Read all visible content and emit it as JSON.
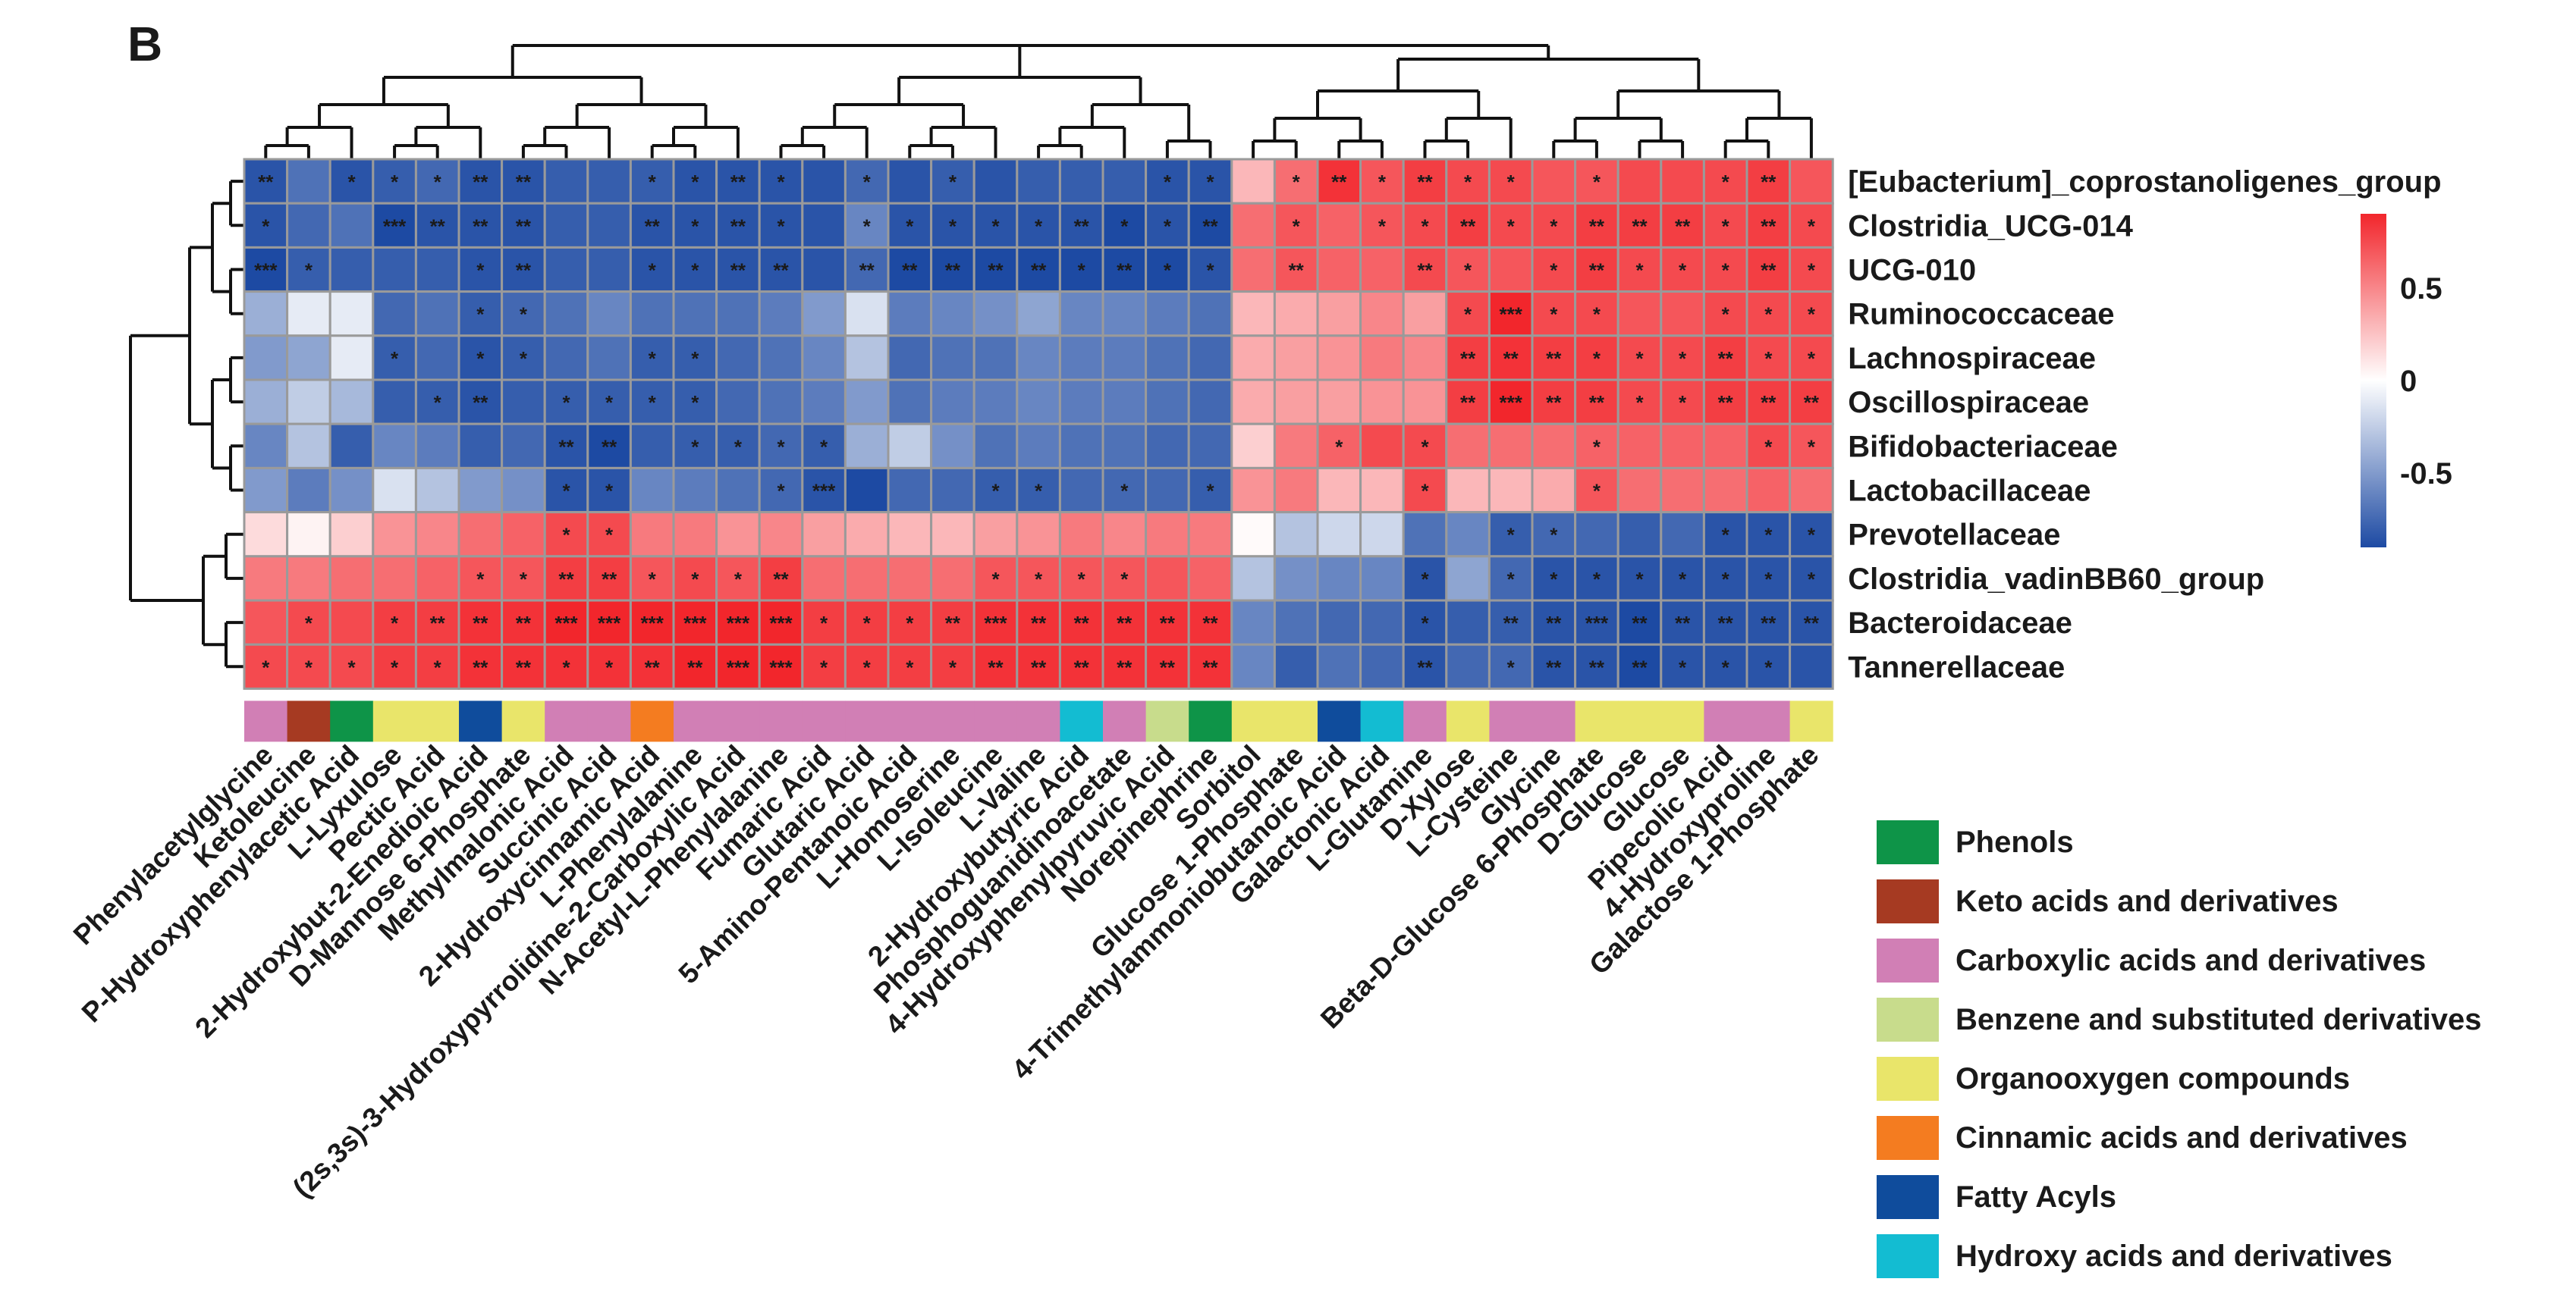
{
  "panel_label": "B",
  "chart_data": {
    "type": "heatmap",
    "rows": [
      "[Eubacterium]_coprostanoligenes_group",
      "Clostridia_UCG-014",
      "UCG-010",
      "Ruminococcaceae",
      "Lachnospiraceae",
      "Oscillospiraceae",
      "Bifidobacteriaceae",
      "Lactobacillaceae",
      "Prevotellaceae",
      "Clostridia_vadinBB60_group",
      "Bacteroidaceae",
      "Tannerellaceae"
    ],
    "columns": [
      "Phenylacetylglycine",
      "Ketoleucine",
      "P-Hydroxyphenylacetic Acid",
      "L-Lyxulose",
      "Pectic Acid",
      "2-Hydroxybut-2-Enedioic Acid",
      "D-Mannose 6-Phosphate",
      "Methylmalonic Acid",
      "Succinic Acid",
      "2-Hydroxycinnamic Acid",
      "L-Phenylalanine",
      "(2s,3s)-3-Hydroxypyrrolidine-2-Carboxylic Acid",
      "N-Acetyl-L-Phenylalanine",
      "Fumaric Acid",
      "Glutaric Acid",
      "5-Amino-Pentanoic Acid",
      "L-Homoserine",
      "L-Isoleucine",
      "L-Valine",
      "2-Hydroxybutyric Acid",
      "Phosphoguanidinoacetate",
      "4-Hydroxyphenylpyruvic Acid",
      "Norepinephrine",
      "Sorbitol",
      "Glucose 1-Phosphate",
      "4-Trimethylammoniobutanoic Acid",
      "Galactonic Acid",
      "L-Glutamine",
      "D-Xylose",
      "L-Cysteine",
      "Glycine",
      "Beta-D-Glucose 6-Phosphate",
      "D-Glucose",
      "Glucose",
      "Pipecolic Acid",
      "4-Hydroxyproline",
      "Galactose 1-Phosphate"
    ],
    "values": [
      [
        -0.85,
        -0.7,
        -0.85,
        -0.8,
        -0.75,
        -0.85,
        -0.85,
        -0.8,
        -0.8,
        -0.8,
        -0.85,
        -0.85,
        -0.85,
        -0.85,
        -0.75,
        -0.85,
        -0.8,
        -0.85,
        -0.8,
        -0.8,
        -0.8,
        -0.85,
        -0.85,
        0.3,
        0.6,
        0.85,
        0.7,
        0.8,
        0.75,
        0.75,
        0.7,
        0.7,
        0.75,
        0.75,
        0.75,
        0.8,
        0.7
      ],
      [
        -0.85,
        -0.75,
        -0.7,
        -0.9,
        -0.85,
        -0.85,
        -0.85,
        -0.8,
        -0.8,
        -0.85,
        -0.85,
        -0.85,
        -0.85,
        -0.85,
        -0.6,
        -0.85,
        -0.85,
        -0.85,
        -0.85,
        -0.85,
        -0.9,
        -0.85,
        -0.9,
        0.6,
        0.7,
        0.65,
        0.7,
        0.75,
        0.8,
        0.75,
        0.75,
        0.8,
        0.8,
        0.8,
        0.75,
        0.8,
        0.75
      ],
      [
        -0.9,
        -0.8,
        -0.8,
        -0.8,
        -0.8,
        -0.85,
        -0.85,
        -0.8,
        -0.8,
        -0.85,
        -0.85,
        -0.85,
        -0.85,
        -0.85,
        -0.75,
        -0.9,
        -0.9,
        -0.9,
        -0.9,
        -0.9,
        -0.9,
        -0.9,
        -0.85,
        0.6,
        0.7,
        0.65,
        0.65,
        0.75,
        0.7,
        0.7,
        0.75,
        0.8,
        0.75,
        0.75,
        0.75,
        0.8,
        0.75
      ],
      [
        -0.4,
        -0.1,
        -0.1,
        -0.75,
        -0.7,
        -0.8,
        -0.75,
        -0.7,
        -0.6,
        -0.7,
        -0.7,
        -0.7,
        -0.65,
        -0.5,
        -0.15,
        -0.65,
        -0.6,
        -0.55,
        -0.45,
        -0.6,
        -0.6,
        -0.65,
        -0.7,
        0.3,
        0.35,
        0.4,
        0.5,
        0.4,
        0.75,
        0.9,
        0.75,
        0.75,
        0.7,
        0.7,
        0.75,
        0.75,
        0.75
      ],
      [
        -0.5,
        -0.45,
        -0.1,
        -0.8,
        -0.75,
        -0.85,
        -0.8,
        -0.75,
        -0.7,
        -0.8,
        -0.8,
        -0.75,
        -0.7,
        -0.6,
        -0.3,
        -0.75,
        -0.7,
        -0.7,
        -0.6,
        -0.65,
        -0.65,
        -0.7,
        -0.75,
        0.35,
        0.4,
        0.45,
        0.55,
        0.5,
        0.8,
        0.85,
        0.8,
        0.8,
        0.75,
        0.75,
        0.8,
        0.75,
        0.75
      ],
      [
        -0.4,
        -0.25,
        -0.35,
        -0.8,
        -0.8,
        -0.85,
        -0.8,
        -0.8,
        -0.8,
        -0.8,
        -0.8,
        -0.75,
        -0.7,
        -0.65,
        -0.5,
        -0.7,
        -0.65,
        -0.65,
        -0.6,
        -0.65,
        -0.65,
        -0.7,
        -0.75,
        0.35,
        0.4,
        0.4,
        0.45,
        0.45,
        0.8,
        0.9,
        0.8,
        0.8,
        0.75,
        0.75,
        0.8,
        0.8,
        0.8
      ],
      [
        -0.6,
        -0.3,
        -0.8,
        -0.6,
        -0.65,
        -0.8,
        -0.75,
        -0.85,
        -0.9,
        -0.8,
        -0.8,
        -0.8,
        -0.75,
        -0.8,
        -0.4,
        -0.25,
        -0.55,
        -0.7,
        -0.65,
        -0.7,
        -0.7,
        -0.75,
        -0.75,
        0.2,
        0.55,
        0.65,
        0.75,
        0.75,
        0.6,
        0.6,
        0.6,
        0.65,
        0.65,
        0.65,
        0.65,
        0.75,
        0.7
      ],
      [
        -0.5,
        -0.65,
        -0.55,
        -0.15,
        -0.3,
        -0.5,
        -0.55,
        -0.85,
        -0.85,
        -0.6,
        -0.65,
        -0.7,
        -0.75,
        -0.85,
        -0.9,
        -0.75,
        -0.75,
        -0.8,
        -0.8,
        -0.75,
        -0.75,
        -0.75,
        -0.8,
        0.45,
        0.55,
        0.3,
        0.3,
        0.75,
        0.3,
        0.3,
        0.35,
        0.7,
        0.6,
        0.6,
        0.6,
        0.65,
        0.6
      ],
      [
        0.15,
        0.05,
        0.2,
        0.45,
        0.5,
        0.6,
        0.65,
        0.75,
        0.75,
        0.55,
        0.55,
        0.45,
        0.5,
        0.4,
        0.35,
        0.3,
        0.3,
        0.4,
        0.45,
        0.55,
        0.5,
        0.55,
        0.55,
        0.02,
        -0.3,
        -0.2,
        -0.2,
        -0.7,
        -0.6,
        -0.8,
        -0.75,
        -0.75,
        -0.8,
        -0.75,
        -0.85,
        -0.85,
        -0.85
      ],
      [
        0.55,
        0.55,
        0.6,
        0.6,
        0.65,
        0.7,
        0.7,
        0.8,
        0.8,
        0.7,
        0.75,
        0.7,
        0.8,
        0.6,
        0.6,
        0.6,
        0.6,
        0.7,
        0.7,
        0.7,
        0.7,
        0.7,
        0.65,
        -0.3,
        -0.55,
        -0.6,
        -0.6,
        -0.85,
        -0.45,
        -0.75,
        -0.85,
        -0.85,
        -0.85,
        -0.85,
        -0.85,
        -0.85,
        -0.85
      ],
      [
        0.7,
        0.75,
        0.75,
        0.8,
        0.8,
        0.85,
        0.85,
        0.9,
        0.9,
        0.9,
        0.9,
        0.9,
        0.9,
        0.8,
        0.8,
        0.8,
        0.8,
        0.85,
        0.85,
        0.85,
        0.85,
        0.85,
        0.85,
        -0.6,
        -0.7,
        -0.75,
        -0.75,
        -0.85,
        -0.8,
        -0.8,
        -0.85,
        -0.85,
        -0.9,
        -0.85,
        -0.85,
        -0.85,
        -0.85
      ],
      [
        0.75,
        0.75,
        0.75,
        0.8,
        0.8,
        0.85,
        0.85,
        0.85,
        0.85,
        0.85,
        0.9,
        0.9,
        0.9,
        0.8,
        0.8,
        0.8,
        0.8,
        0.85,
        0.85,
        0.85,
        0.85,
        0.85,
        0.85,
        -0.6,
        -0.8,
        -0.7,
        -0.75,
        -0.85,
        -0.75,
        -0.75,
        -0.85,
        -0.85,
        -0.9,
        -0.85,
        -0.85,
        -0.85,
        -0.85
      ]
    ],
    "significance": [
      [
        "**",
        "",
        "*",
        "*",
        "*",
        "**",
        "**",
        "",
        "",
        "*",
        "*",
        "**",
        "*",
        "",
        "*",
        "",
        "*",
        "",
        "",
        "",
        "",
        "*",
        "*",
        "",
        "*",
        "**",
        "*",
        "**",
        "*",
        "*",
        "",
        "*",
        "",
        "",
        "*",
        "**",
        ""
      ],
      [
        "*",
        "",
        "",
        "***",
        "**",
        "**",
        "**",
        "",
        "",
        "**",
        "*",
        "**",
        "*",
        "",
        "*",
        "*",
        "*",
        "*",
        "*",
        "**",
        "*",
        "*",
        "**",
        "",
        "*",
        "",
        "*",
        "*",
        "**",
        "*",
        "*",
        "**",
        "**",
        "**",
        "*",
        "**",
        "*"
      ],
      [
        "***",
        "*",
        "",
        "",
        "",
        "*",
        "**",
        "",
        "",
        "*",
        "*",
        "**",
        "**",
        "",
        "**",
        "**",
        "**",
        "**",
        "**",
        "*",
        "**",
        "*",
        "*",
        "",
        "**",
        "",
        "",
        "**",
        "*",
        "",
        "*",
        "**",
        "*",
        "*",
        "*",
        "**",
        "*"
      ],
      [
        "",
        "",
        "",
        "",
        "",
        "*",
        "*",
        "",
        "",
        "",
        "",
        "",
        "",
        "",
        "",
        "",
        "",
        "",
        "",
        "",
        "",
        "",
        "",
        "",
        "",
        "",
        "",
        "",
        "*",
        "***",
        "*",
        "*",
        "",
        "",
        "*",
        "*",
        "*"
      ],
      [
        "",
        "",
        "",
        "*",
        "",
        "*",
        "*",
        "",
        "",
        "*",
        "*",
        "",
        "",
        "",
        "",
        "",
        "",
        "",
        "",
        "",
        "",
        "",
        "",
        "",
        "",
        "",
        "",
        "",
        "**",
        "**",
        "**",
        "*",
        "*",
        "*",
        "**",
        "*",
        "*"
      ],
      [
        "",
        "",
        "",
        "",
        "*",
        "**",
        "",
        "*",
        "*",
        "*",
        "*",
        "",
        "",
        "",
        "",
        "",
        "",
        "",
        "",
        "",
        "",
        "",
        "",
        "",
        "",
        "",
        "",
        "",
        "**",
        "***",
        "**",
        "**",
        "*",
        "*",
        "**",
        "**",
        "**"
      ],
      [
        "",
        "",
        "",
        "",
        "",
        "",
        "",
        "**",
        "**",
        "",
        "*",
        "*",
        "*",
        "*",
        "",
        "",
        "",
        "",
        "",
        "",
        "",
        "",
        "",
        "",
        "",
        "*",
        "",
        "*",
        "",
        "",
        "",
        "*",
        "",
        "",
        "",
        "*",
        "*"
      ],
      [
        "",
        "",
        "",
        "",
        "",
        "",
        "",
        "*",
        "*",
        "",
        "",
        "",
        "*",
        "***",
        "",
        "",
        "",
        "*",
        "*",
        "",
        "*",
        "",
        "*",
        "",
        "",
        "",
        "",
        "*",
        "",
        "",
        "",
        "*",
        "",
        "",
        "",
        "",
        ""
      ],
      [
        "",
        "",
        "",
        "",
        "",
        "",
        "",
        "*",
        "*",
        "",
        "",
        "",
        "",
        "",
        "",
        "",
        "",
        "",
        "",
        "",
        "",
        "",
        "",
        "",
        "",
        "",
        "",
        "",
        "",
        "*",
        "*",
        "",
        "",
        "",
        "*",
        "*",
        "*"
      ],
      [
        "",
        "",
        "",
        "",
        "",
        "*",
        "*",
        "**",
        "**",
        "*",
        "*",
        "*",
        "**",
        "",
        "",
        "",
        "",
        "*",
        "*",
        "*",
        "*",
        "",
        "",
        "",
        "",
        "",
        "",
        "*",
        "",
        "*",
        "*",
        "*",
        "*",
        "*",
        "*",
        "*",
        "*"
      ],
      [
        "",
        "*",
        "",
        "*",
        "**",
        "**",
        "**",
        "***",
        "***",
        "***",
        "***",
        "***",
        "***",
        "*",
        "*",
        "*",
        "**",
        "***",
        "**",
        "**",
        "**",
        "**",
        "**",
        "",
        "",
        "",
        "",
        "*",
        "",
        "**",
        "**",
        "***",
        "**",
        "**",
        "**",
        "**",
        "**"
      ],
      [
        "*",
        "*",
        "*",
        "*",
        "*",
        "**",
        "**",
        "*",
        "*",
        "**",
        "**",
        "***",
        "***",
        "*",
        "*",
        "*",
        "*",
        "**",
        "**",
        "**",
        "**",
        "**",
        "**",
        "",
        "",
        "",
        "",
        "**",
        "",
        "*",
        "**",
        "**",
        "**",
        "*",
        "*",
        "*",
        ""
      ]
    ],
    "column_classes": [
      "Carboxylic acids and derivatives",
      "Keto acids and derivatives",
      "Phenols",
      "Organooxygen compounds",
      "Organooxygen compounds",
      "Fatty Acyls",
      "Organooxygen compounds",
      "Carboxylic acids and derivatives",
      "Carboxylic acids and derivatives",
      "Cinnamic acids and derivatives",
      "Carboxylic acids and derivatives",
      "Carboxylic acids and derivatives",
      "Carboxylic acids and derivatives",
      "Carboxylic acids and derivatives",
      "Carboxylic acids and derivatives",
      "Carboxylic acids and derivatives",
      "Carboxylic acids and derivatives",
      "Carboxylic acids and derivatives",
      "Carboxylic acids and derivatives",
      "Hydroxy acids and derivatives",
      "Carboxylic acids and derivatives",
      "Benzene and substituted derivatives",
      "Phenols",
      "Organooxygen compounds",
      "Organooxygen compounds",
      "Fatty Acyls",
      "Hydroxy acids and derivatives",
      "Carboxylic acids and derivatives",
      "Organooxygen compounds",
      "Carboxylic acids and derivatives",
      "Carboxylic acids and derivatives",
      "Organooxygen compounds",
      "Organooxygen compounds",
      "Organooxygen compounds",
      "Carboxylic acids and derivatives",
      "Carboxylic acids and derivatives",
      "Organooxygen compounds"
    ],
    "legend": [
      {
        "label": "Phenols",
        "color": "#0e9448"
      },
      {
        "label": "Keto acids and derivatives",
        "color": "#a63a22"
      },
      {
        "label": "Carboxylic acids and derivatives",
        "color": "#d17fb5"
      },
      {
        "label": "Benzene and substituted derivatives",
        "color": "#c8dc8c"
      },
      {
        "label": "Organooxygen compounds",
        "color": "#e9e56a"
      },
      {
        "label": "Cinnamic acids and derivatives",
        "color": "#f47c20"
      },
      {
        "label": "Fatty Acyls",
        "color": "#0f4c9c"
      },
      {
        "label": "Hydroxy acids and derivatives",
        "color": "#13bcd2"
      }
    ],
    "colorbar": {
      "ticks": [
        0.5,
        0,
        -0.5
      ],
      "tick_labels": [
        "0.5",
        "0",
        "-0.5"
      ],
      "range": [
        -0.9,
        0.9
      ],
      "colors": {
        "neg": "#1d4aa3",
        "mid": "#ffffff",
        "pos": "#f2262c"
      }
    },
    "column_tree": [],
    "row_tree": []
  }
}
